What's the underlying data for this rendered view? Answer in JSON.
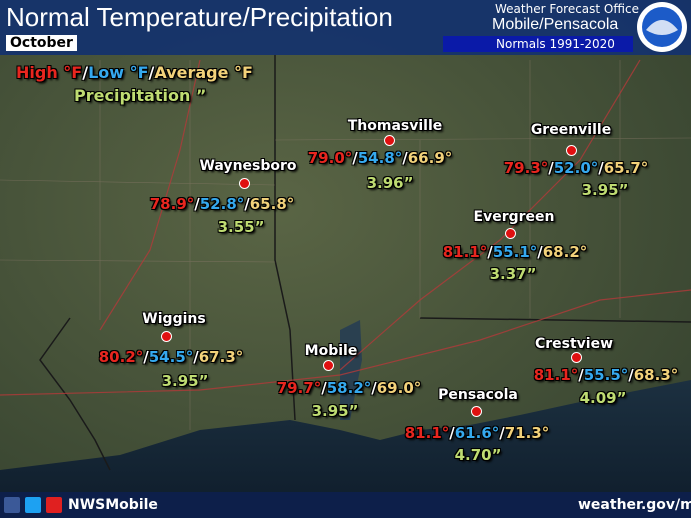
{
  "header": {
    "title": "Normal Temperature/Precipitation",
    "month": "October",
    "office_line": "Weather Forecast Office",
    "office": "Mobile/Pensacola",
    "normals": "Normals 1991-2020"
  },
  "legend": {
    "high": "High °F",
    "low": "Low °F",
    "average": "Average °F",
    "precipitation": "Precipitation ”"
  },
  "separator": "/",
  "cities": [
    {
      "name": "Thomasville",
      "high": "79.0°",
      "low": "54.8°",
      "avg": "66.9°",
      "precip": "3.96”"
    },
    {
      "name": "Greenville",
      "high": "79.3°",
      "low": "52.0°",
      "avg": "65.7°",
      "precip": "3.95”"
    },
    {
      "name": "Waynesboro",
      "high": "78.9°",
      "low": "52.8°",
      "avg": "65.8°",
      "precip": "3.55”"
    },
    {
      "name": "Evergreen",
      "high": "81.1°",
      "low": "55.1°",
      "avg": "68.2°",
      "precip": "3.37”"
    },
    {
      "name": "Wiggins",
      "high": "80.2°",
      "low": "54.5°",
      "avg": "67.3°",
      "precip": "3.95”"
    },
    {
      "name": "Mobile",
      "high": "79.7°",
      "low": "58.2°",
      "avg": "69.0°",
      "precip": "3.95”"
    },
    {
      "name": "Crestview",
      "high": "81.1°",
      "low": "55.5°",
      "avg": "68.3°",
      "precip": "4.09”"
    },
    {
      "name": "Pensacola",
      "high": "81.1°",
      "low": "61.6°",
      "avg": "71.3°",
      "precip": "4.70”"
    }
  ],
  "footer": {
    "handle": "NWSMobile",
    "url": "weather.gov/mob"
  }
}
